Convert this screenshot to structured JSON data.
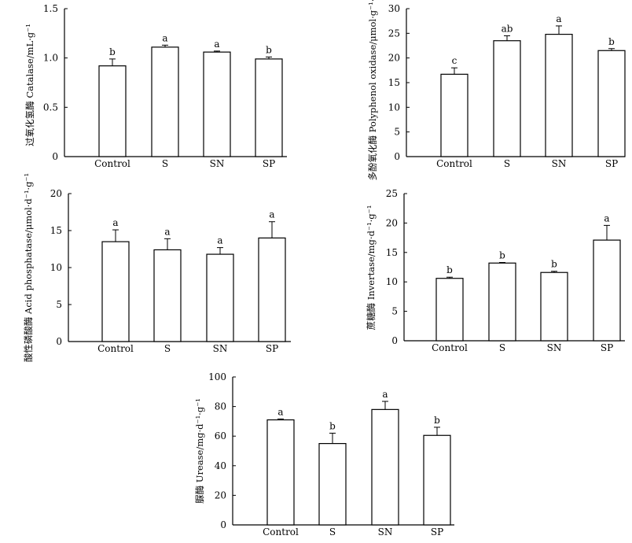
{
  "chart_data": [
    {
      "type": "bar",
      "categories": [
        "Control",
        "S",
        "SN",
        "SP"
      ],
      "values": [
        0.92,
        1.11,
        1.06,
        0.99
      ],
      "errors": [
        0.07,
        0.02,
        0.01,
        0.02
      ],
      "labels": [
        "b",
        "a",
        "a",
        "b"
      ],
      "ylabel": "过氧化氢酶 Catalase/mL·g⁻¹",
      "ylim": [
        0,
        1.5
      ],
      "yticks": [
        0,
        0.5,
        1.0,
        1.5
      ],
      "ytick_labels": [
        "0",
        "0.5",
        "1.0",
        "1.5"
      ]
    },
    {
      "type": "bar",
      "categories": [
        "Control",
        "S",
        "SN",
        "SP"
      ],
      "values": [
        16.7,
        23.5,
        24.8,
        21.5
      ],
      "errors": [
        1.3,
        1.0,
        1.7,
        0.4
      ],
      "labels": [
        "c",
        "ab",
        "a",
        "b"
      ],
      "ylabel": "多酚氧化酶 Polyphenol oxidase/μmol·g⁻¹·h⁻¹",
      "ylim": [
        0,
        30
      ],
      "yticks": [
        0,
        5,
        10,
        15,
        20,
        25,
        30
      ],
      "ytick_labels": [
        "0",
        "5",
        "10",
        "15",
        "20",
        "25",
        "30"
      ]
    },
    {
      "type": "bar",
      "categories": [
        "Control",
        "S",
        "SN",
        "SP"
      ],
      "values": [
        13.5,
        12.4,
        11.8,
        14.0
      ],
      "errors": [
        1.6,
        1.5,
        0.9,
        2.2
      ],
      "labels": [
        "a",
        "a",
        "a",
        "a"
      ],
      "ylabel": "酸性磷酸酶 Acid phosphatase/μmol·d⁻¹·g⁻¹",
      "ylim": [
        0,
        20
      ],
      "yticks": [
        0,
        5,
        10,
        15,
        20
      ],
      "ytick_labels": [
        "0",
        "5",
        "10",
        "15",
        "20"
      ]
    },
    {
      "type": "bar",
      "categories": [
        "Control",
        "S",
        "SN",
        "SP"
      ],
      "values": [
        10.6,
        13.2,
        11.6,
        17.1
      ],
      "errors": [
        0.2,
        0.1,
        0.2,
        2.5
      ],
      "labels": [
        "b",
        "b",
        "b",
        "a"
      ],
      "ylabel": "蔗糖酶 Invertase/mg·d⁻¹·g⁻¹",
      "ylim": [
        0,
        25
      ],
      "yticks": [
        0,
        5,
        10,
        15,
        20,
        25
      ],
      "ytick_labels": [
        "0",
        "5",
        "10",
        "15",
        "20",
        "25"
      ]
    },
    {
      "type": "bar",
      "categories": [
        "Control",
        "S",
        "SN",
        "SP"
      ],
      "values": [
        71,
        55,
        78,
        60.5
      ],
      "errors": [
        0.6,
        7,
        5.5,
        5.5
      ],
      "labels": [
        "a",
        "b",
        "a",
        "b"
      ],
      "ylabel": "脲酶 Urease/mg·d⁻¹·g⁻¹",
      "ylim": [
        0,
        100
      ],
      "yticks": [
        0,
        20,
        40,
        60,
        80,
        100
      ],
      "ytick_labels": [
        "0",
        "20",
        "40",
        "60",
        "80",
        "100"
      ]
    }
  ]
}
